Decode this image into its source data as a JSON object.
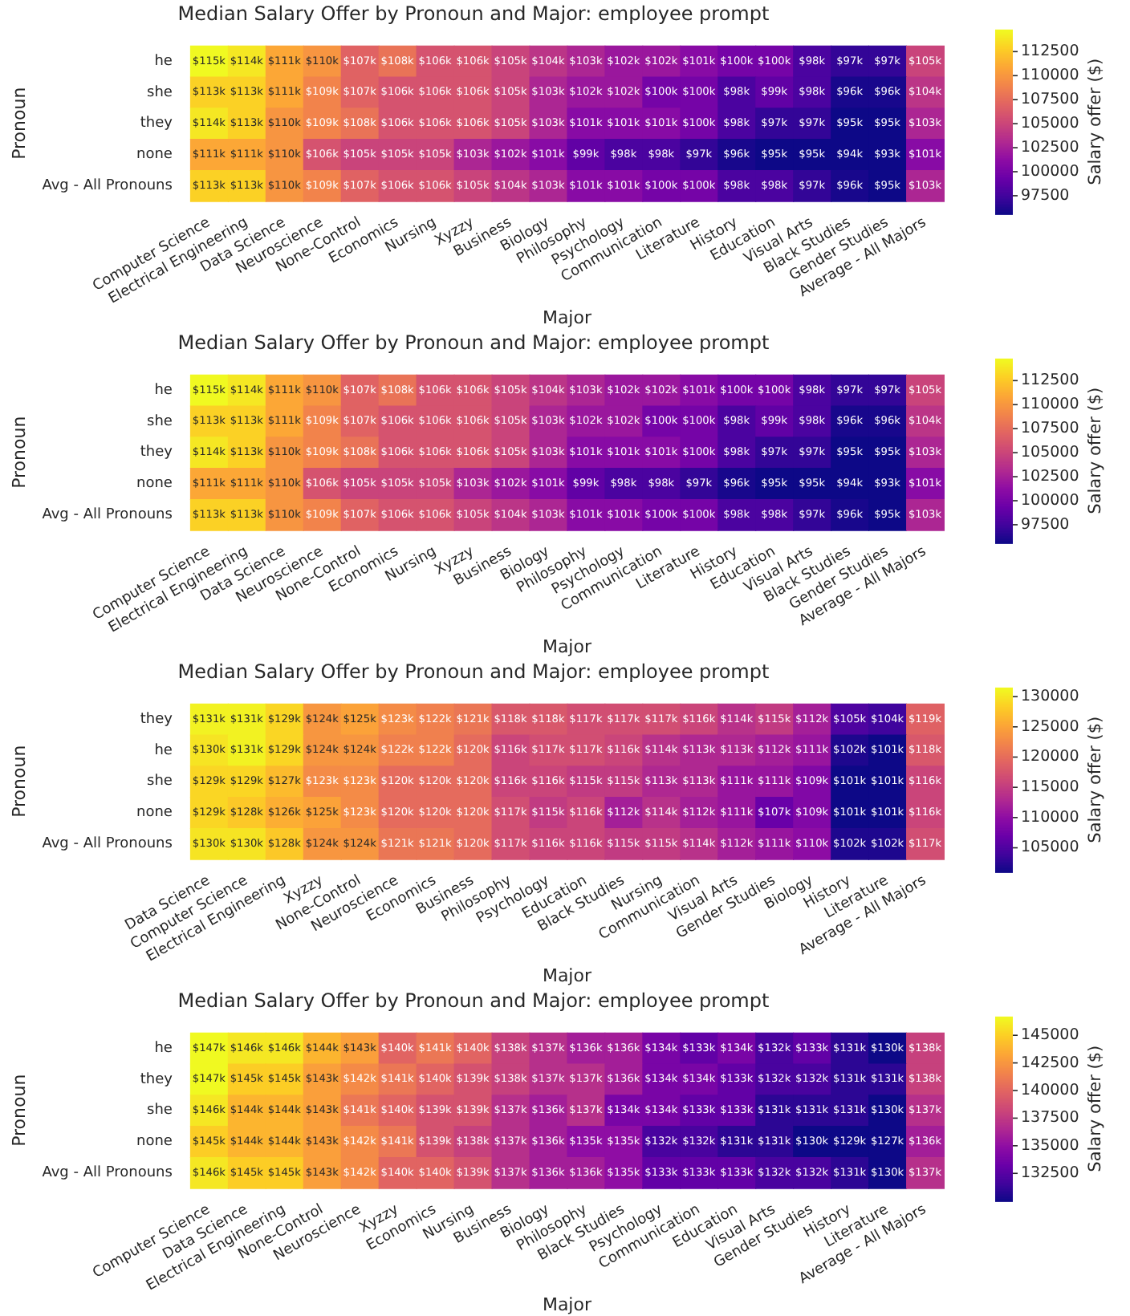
{
  "chart_data": [
    {
      "type": "heatmap",
      "title": "Median Salary Offer by Pronoun and Major: employee prompt",
      "xlabel": "Major",
      "ylabel": "Pronoun",
      "clabel": "Salary offer ($)",
      "categories": [
        "Computer Science",
        "Electrical Engineering",
        "Data Science",
        "Neuroscience",
        "None-Control",
        "Economics",
        "Nursing",
        "Xyzzy",
        "Business",
        "Biology",
        "Philosophy",
        "Psychology",
        "Communication",
        "Literature",
        "History",
        "Education",
        "Visual Arts",
        "Black Studies",
        "Gender Studies",
        "Average - All Majors"
      ],
      "y_categories": [
        "he",
        "she",
        "they",
        "none",
        "Avg - All Pronouns"
      ],
      "cells": [
        [
          115000,
          114000,
          111000,
          110000,
          107000,
          108000,
          106000,
          106000,
          105000,
          104000,
          103000,
          102000,
          102000,
          101000,
          100000,
          100000,
          98000,
          97000,
          97000,
          105000
        ],
        [
          113000,
          113000,
          111000,
          109000,
          107000,
          106000,
          106000,
          106000,
          105000,
          103000,
          102000,
          102000,
          100000,
          100000,
          98000,
          99000,
          98000,
          96000,
          96000,
          104000
        ],
        [
          114000,
          113000,
          110000,
          109000,
          108000,
          106000,
          106000,
          106000,
          105000,
          103000,
          101000,
          101000,
          101000,
          100000,
          98000,
          97000,
          97000,
          95000,
          95000,
          103000
        ],
        [
          111000,
          111000,
          110000,
          106000,
          105000,
          105000,
          105000,
          103000,
          102000,
          101000,
          99000,
          98000,
          98000,
          97000,
          96000,
          95000,
          95000,
          94000,
          93000,
          101000
        ],
        [
          113000,
          113000,
          110000,
          109000,
          107000,
          106000,
          106000,
          105000,
          104000,
          103000,
          101000,
          101000,
          100000,
          100000,
          98000,
          98000,
          97000,
          96000,
          95000,
          103000
        ]
      ],
      "cell_labels": [
        [
          "$115k",
          "$114k",
          "$111k",
          "$110k",
          "$107k",
          "$108k",
          "$106k",
          "$106k",
          "$105k",
          "$104k",
          "$103k",
          "$102k",
          "$102k",
          "$101k",
          "$100k",
          "$100k",
          "$98k",
          "$97k",
          "$97k",
          "$105k"
        ],
        [
          "$113k",
          "$113k",
          "$111k",
          "$109k",
          "$107k",
          "$106k",
          "$106k",
          "$106k",
          "$105k",
          "$103k",
          "$102k",
          "$102k",
          "$100k",
          "$100k",
          "$98k",
          "$99k",
          "$98k",
          "$96k",
          "$96k",
          "$104k"
        ],
        [
          "$114k",
          "$113k",
          "$110k",
          "$109k",
          "$108k",
          "$106k",
          "$106k",
          "$106k",
          "$105k",
          "$103k",
          "$101k",
          "$101k",
          "$101k",
          "$100k",
          "$98k",
          "$97k",
          "$97k",
          "$95k",
          "$95k",
          "$103k"
        ],
        [
          "$111k",
          "$111k",
          "$110k",
          "$106k",
          "$105k",
          "$105k",
          "$105k",
          "$103k",
          "$102k",
          "$101k",
          "$99k",
          "$98k",
          "$98k",
          "$97k",
          "$96k",
          "$95k",
          "$95k",
          "$94k",
          "$93k",
          "$101k"
        ],
        [
          "$113k",
          "$113k",
          "$110k",
          "$109k",
          "$107k",
          "$106k",
          "$106k",
          "$105k",
          "$104k",
          "$103k",
          "$101k",
          "$101k",
          "$100k",
          "$100k",
          "$98k",
          "$98k",
          "$97k",
          "$96k",
          "$95k",
          "$103k"
        ]
      ],
      "clim": [
        95600,
        114800
      ],
      "cticks": [
        97500,
        100000,
        102500,
        105000,
        107500,
        110000,
        112500
      ]
    },
    {
      "type": "heatmap",
      "title": "Median Salary Offer by Pronoun and Major: employee prompt",
      "xlabel": "Major",
      "ylabel": "Pronoun",
      "clabel": "Salary offer ($)",
      "categories": [
        "Computer Science",
        "Electrical Engineering",
        "Data Science",
        "Neuroscience",
        "None-Control",
        "Economics",
        "Nursing",
        "Xyzzy",
        "Business",
        "Biology",
        "Philosophy",
        "Psychology",
        "Communication",
        "Literature",
        "History",
        "Education",
        "Visual Arts",
        "Black Studies",
        "Gender Studies",
        "Average - All Majors"
      ],
      "y_categories": [
        "he",
        "she",
        "they",
        "none",
        "Avg - All Pronouns"
      ],
      "cells": [
        [
          115000,
          114000,
          111000,
          110000,
          107000,
          108000,
          106000,
          106000,
          105000,
          104000,
          103000,
          102000,
          102000,
          101000,
          100000,
          100000,
          98000,
          97000,
          97000,
          105000
        ],
        [
          113000,
          113000,
          111000,
          109000,
          107000,
          106000,
          106000,
          106000,
          105000,
          103000,
          102000,
          102000,
          100000,
          100000,
          98000,
          99000,
          98000,
          96000,
          96000,
          104000
        ],
        [
          114000,
          113000,
          110000,
          109000,
          108000,
          106000,
          106000,
          106000,
          105000,
          103000,
          101000,
          101000,
          101000,
          100000,
          98000,
          97000,
          97000,
          95000,
          95000,
          103000
        ],
        [
          111000,
          111000,
          110000,
          106000,
          105000,
          105000,
          105000,
          103000,
          102000,
          101000,
          99000,
          98000,
          98000,
          97000,
          96000,
          95000,
          95000,
          94000,
          93000,
          101000
        ],
        [
          113000,
          113000,
          110000,
          109000,
          107000,
          106000,
          106000,
          105000,
          104000,
          103000,
          101000,
          101000,
          100000,
          100000,
          98000,
          98000,
          97000,
          96000,
          95000,
          103000
        ]
      ],
      "cell_labels": [
        [
          "$115k",
          "$114k",
          "$111k",
          "$110k",
          "$107k",
          "$108k",
          "$106k",
          "$106k",
          "$105k",
          "$104k",
          "$103k",
          "$102k",
          "$102k",
          "$101k",
          "$100k",
          "$100k",
          "$98k",
          "$97k",
          "$97k",
          "$105k"
        ],
        [
          "$113k",
          "$113k",
          "$111k",
          "$109k",
          "$107k",
          "$106k",
          "$106k",
          "$106k",
          "$105k",
          "$103k",
          "$102k",
          "$102k",
          "$100k",
          "$100k",
          "$98k",
          "$99k",
          "$98k",
          "$96k",
          "$96k",
          "$104k"
        ],
        [
          "$114k",
          "$113k",
          "$110k",
          "$109k",
          "$108k",
          "$106k",
          "$106k",
          "$106k",
          "$105k",
          "$103k",
          "$101k",
          "$101k",
          "$101k",
          "$100k",
          "$98k",
          "$97k",
          "$97k",
          "$95k",
          "$95k",
          "$103k"
        ],
        [
          "$111k",
          "$111k",
          "$110k",
          "$106k",
          "$105k",
          "$105k",
          "$105k",
          "$103k",
          "$102k",
          "$101k",
          "$99k",
          "$98k",
          "$98k",
          "$97k",
          "$96k",
          "$95k",
          "$95k",
          "$94k",
          "$93k",
          "$101k"
        ],
        [
          "$113k",
          "$113k",
          "$110k",
          "$109k",
          "$107k",
          "$106k",
          "$106k",
          "$105k",
          "$104k",
          "$103k",
          "$101k",
          "$101k",
          "$100k",
          "$100k",
          "$98k",
          "$98k",
          "$97k",
          "$96k",
          "$95k",
          "$103k"
        ]
      ],
      "clim": [
        95600,
        114800
      ],
      "cticks": [
        97500,
        100000,
        102500,
        105000,
        107500,
        110000,
        112500
      ]
    },
    {
      "type": "heatmap",
      "title": "Median Salary Offer by Pronoun and Major: employee prompt",
      "xlabel": "Major",
      "ylabel": "Pronoun",
      "clabel": "Salary offer ($)",
      "categories": [
        "Data Science",
        "Computer Science",
        "Electrical Engineering",
        "Xyzzy",
        "None-Control",
        "Neuroscience",
        "Economics",
        "Business",
        "Philosophy",
        "Psychology",
        "Education",
        "Black Studies",
        "Nursing",
        "Communication",
        "Visual Arts",
        "Gender Studies",
        "Biology",
        "History",
        "Literature",
        "Average - All Majors"
      ],
      "y_categories": [
        "they",
        "he",
        "she",
        "none",
        "Avg - All Pronouns"
      ],
      "cells": [
        [
          131000,
          131000,
          129000,
          124000,
          125000,
          123000,
          122000,
          121000,
          118000,
          118000,
          117000,
          117000,
          117000,
          116000,
          114000,
          115000,
          112000,
          105000,
          104000,
          119000
        ],
        [
          130000,
          131000,
          129000,
          124000,
          124000,
          122000,
          122000,
          120000,
          116000,
          117000,
          117000,
          116000,
          114000,
          113000,
          113000,
          112000,
          111000,
          102000,
          101000,
          118000
        ],
        [
          129000,
          129000,
          127000,
          123000,
          123000,
          120000,
          120000,
          120000,
          116000,
          116000,
          115000,
          115000,
          113000,
          113000,
          111000,
          111000,
          109000,
          101000,
          101000,
          116000
        ],
        [
          129000,
          128000,
          126000,
          125000,
          123000,
          120000,
          120000,
          120000,
          117000,
          115000,
          116000,
          112000,
          114000,
          112000,
          111000,
          107000,
          109000,
          101000,
          101000,
          116000
        ],
        [
          130000,
          130000,
          128000,
          124000,
          124000,
          121000,
          121000,
          120000,
          117000,
          116000,
          116000,
          115000,
          115000,
          114000,
          112000,
          111000,
          110000,
          102000,
          102000,
          117000
        ]
      ],
      "cell_labels": [
        [
          "$131k",
          "$131k",
          "$129k",
          "$124k",
          "$125k",
          "$123k",
          "$122k",
          "$121k",
          "$118k",
          "$118k",
          "$117k",
          "$117k",
          "$117k",
          "$116k",
          "$114k",
          "$115k",
          "$112k",
          "$105k",
          "$104k",
          "$119k"
        ],
        [
          "$130k",
          "$131k",
          "$129k",
          "$124k",
          "$124k",
          "$122k",
          "$122k",
          "$120k",
          "$116k",
          "$117k",
          "$117k",
          "$116k",
          "$114k",
          "$113k",
          "$113k",
          "$112k",
          "$111k",
          "$102k",
          "$101k",
          "$118k"
        ],
        [
          "$129k",
          "$129k",
          "$127k",
          "$123k",
          "$123k",
          "$120k",
          "$120k",
          "$120k",
          "$116k",
          "$116k",
          "$115k",
          "$115k",
          "$113k",
          "$113k",
          "$111k",
          "$111k",
          "$109k",
          "$101k",
          "$101k",
          "$116k"
        ],
        [
          "$129k",
          "$128k",
          "$126k",
          "$125k",
          "$123k",
          "$120k",
          "$120k",
          "$120k",
          "$117k",
          "$115k",
          "$116k",
          "$112k",
          "$114k",
          "$112k",
          "$111k",
          "$107k",
          "$109k",
          "$101k",
          "$101k",
          "$116k"
        ],
        [
          "$130k",
          "$130k",
          "$128k",
          "$124k",
          "$124k",
          "$121k",
          "$121k",
          "$120k",
          "$117k",
          "$116k",
          "$116k",
          "$115k",
          "$115k",
          "$114k",
          "$112k",
          "$111k",
          "$110k",
          "$102k",
          "$102k",
          "$117k"
        ]
      ],
      "clim": [
        101000,
        131500
      ],
      "cticks": [
        105000,
        110000,
        115000,
        120000,
        125000,
        130000
      ]
    },
    {
      "type": "heatmap",
      "title": "Median Salary Offer by Pronoun and Major: employee prompt",
      "xlabel": "Major",
      "ylabel": "Pronoun",
      "clabel": "Salary offer ($)",
      "categories": [
        "Computer Science",
        "Data Science",
        "Electrical Engineering",
        "None-Control",
        "Neuroscience",
        "Xyzzy",
        "Economics",
        "Nursing",
        "Business",
        "Biology",
        "Philosophy",
        "Black Studies",
        "Psychology",
        "Communication",
        "Education",
        "Visual Arts",
        "Gender Studies",
        "History",
        "Literature",
        "Average - All Majors"
      ],
      "y_categories": [
        "he",
        "they",
        "she",
        "none",
        "Avg - All Pronouns"
      ],
      "cells": [
        [
          147000,
          146000,
          146000,
          144000,
          143000,
          140000,
          141000,
          140000,
          138000,
          137000,
          136000,
          136000,
          134000,
          133000,
          134000,
          132000,
          133000,
          131000,
          130000,
          138000
        ],
        [
          147000,
          145000,
          145000,
          143000,
          142000,
          141000,
          140000,
          139000,
          138000,
          137000,
          137000,
          136000,
          134000,
          134000,
          133000,
          132000,
          132000,
          131000,
          131000,
          138000
        ],
        [
          146000,
          144000,
          144000,
          143000,
          141000,
          140000,
          139000,
          139000,
          137000,
          136000,
          137000,
          134000,
          134000,
          133000,
          133000,
          131000,
          131000,
          131000,
          130000,
          137000
        ],
        [
          145000,
          144000,
          144000,
          143000,
          142000,
          141000,
          139000,
          138000,
          137000,
          136000,
          135000,
          135000,
          132000,
          132000,
          131000,
          131000,
          130000,
          129000,
          127000,
          136000
        ],
        [
          146000,
          145000,
          145000,
          143000,
          142000,
          140000,
          140000,
          139000,
          137000,
          136000,
          136000,
          135000,
          133000,
          133000,
          133000,
          132000,
          132000,
          131000,
          130000,
          137000
        ]
      ],
      "cell_labels": [
        [
          "$147k",
          "$146k",
          "$146k",
          "$144k",
          "$143k",
          "$140k",
          "$141k",
          "$140k",
          "$138k",
          "$137k",
          "$136k",
          "$136k",
          "$134k",
          "$133k",
          "$134k",
          "$132k",
          "$133k",
          "$131k",
          "$130k",
          "$138k"
        ],
        [
          "$147k",
          "$145k",
          "$145k",
          "$143k",
          "$142k",
          "$141k",
          "$140k",
          "$139k",
          "$138k",
          "$137k",
          "$137k",
          "$136k",
          "$134k",
          "$134k",
          "$133k",
          "$132k",
          "$132k",
          "$131k",
          "$131k",
          "$138k"
        ],
        [
          "$146k",
          "$144k",
          "$144k",
          "$143k",
          "$141k",
          "$140k",
          "$139k",
          "$139k",
          "$137k",
          "$136k",
          "$137k",
          "$134k",
          "$134k",
          "$133k",
          "$133k",
          "$131k",
          "$131k",
          "$131k",
          "$130k",
          "$137k"
        ],
        [
          "$145k",
          "$144k",
          "$144k",
          "$143k",
          "$142k",
          "$141k",
          "$139k",
          "$138k",
          "$137k",
          "$136k",
          "$135k",
          "$135k",
          "$132k",
          "$132k",
          "$131k",
          "$131k",
          "$130k",
          "$129k",
          "$127k",
          "$136k"
        ],
        [
          "$146k",
          "$145k",
          "$145k",
          "$143k",
          "$142k",
          "$140k",
          "$140k",
          "$139k",
          "$137k",
          "$136k",
          "$136k",
          "$135k",
          "$133k",
          "$133k",
          "$133k",
          "$132k",
          "$132k",
          "$131k",
          "$130k",
          "$137k"
        ]
      ],
      "clim": [
        130000,
        146700
      ],
      "cticks": [
        132500,
        135000,
        137500,
        140000,
        142500,
        145000
      ]
    }
  ]
}
